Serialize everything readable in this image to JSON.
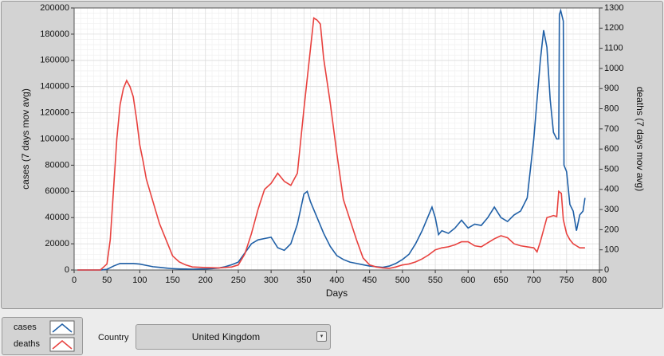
{
  "chart_data": {
    "type": "line",
    "xlabel": "Days",
    "ylabel": "cases  (7 days mov avg)",
    "y2label": "deaths  (7 days mov avg)",
    "xlim": [
      0,
      800
    ],
    "xticks": [
      0,
      50,
      100,
      150,
      200,
      250,
      300,
      350,
      400,
      450,
      500,
      550,
      600,
      650,
      700,
      750,
      800
    ],
    "ylim": [
      0,
      200000
    ],
    "yticks": [
      0,
      20000,
      40000,
      60000,
      80000,
      100000,
      120000,
      140000,
      160000,
      180000,
      200000
    ],
    "y2lim": [
      0,
      1300
    ],
    "y2ticks": [
      0,
      100,
      200,
      300,
      400,
      500,
      600,
      700,
      800,
      900,
      1000,
      1100,
      1200,
      1300
    ],
    "grid": true,
    "minor_grid": true,
    "series": [
      {
        "name": "cases",
        "color": "#1f5fa6",
        "axis": "y",
        "x": [
          5,
          20,
          40,
          50,
          60,
          70,
          80,
          90,
          100,
          110,
          120,
          130,
          140,
          150,
          160,
          170,
          180,
          190,
          200,
          210,
          220,
          230,
          240,
          250,
          260,
          270,
          280,
          290,
          300,
          310,
          320,
          330,
          340,
          350,
          355,
          360,
          370,
          380,
          390,
          400,
          410,
          420,
          430,
          440,
          450,
          460,
          470,
          480,
          490,
          500,
          510,
          520,
          530,
          540,
          545,
          550,
          555,
          560,
          570,
          580,
          590,
          600,
          610,
          620,
          630,
          640,
          650,
          660,
          670,
          680,
          690,
          700,
          710,
          715,
          720,
          725,
          730,
          735,
          738,
          739,
          741,
          745,
          746,
          750,
          755,
          760,
          765,
          770,
          775,
          778
        ],
        "values": [
          0,
          0,
          0,
          500,
          3000,
          5000,
          5000,
          5000,
          4500,
          3500,
          2500,
          2000,
          1500,
          1000,
          800,
          700,
          600,
          700,
          800,
          1000,
          1500,
          2500,
          4000,
          6000,
          13000,
          20000,
          23000,
          24000,
          25000,
          17000,
          15000,
          20000,
          35000,
          58000,
          60000,
          52000,
          40000,
          28000,
          18000,
          11000,
          8000,
          6000,
          5000,
          4000,
          3000,
          2500,
          2000,
          3000,
          5000,
          8000,
          12000,
          20000,
          30000,
          42000,
          48000,
          40000,
          27000,
          30000,
          28000,
          32000,
          38000,
          32000,
          35000,
          34000,
          40000,
          48000,
          40000,
          37000,
          42000,
          45000,
          55000,
          100000,
          160000,
          183000,
          170000,
          130000,
          105000,
          100000,
          100000,
          195000,
          198000,
          190000,
          80000,
          75000,
          50000,
          45000,
          30000,
          42000,
          45000,
          55000
        ]
      },
      {
        "name": "deaths",
        "color": "#e8413e",
        "axis": "y2",
        "x": [
          5,
          40,
          50,
          55,
          60,
          65,
          70,
          75,
          80,
          85,
          90,
          95,
          100,
          105,
          110,
          120,
          130,
          140,
          150,
          160,
          170,
          180,
          200,
          220,
          240,
          250,
          260,
          270,
          280,
          290,
          300,
          310,
          320,
          330,
          340,
          350,
          360,
          365,
          370,
          375,
          380,
          390,
          400,
          410,
          420,
          430,
          440,
          450,
          460,
          470,
          480,
          490,
          500,
          510,
          520,
          530,
          540,
          550,
          560,
          570,
          580,
          590,
          600,
          610,
          620,
          630,
          640,
          650,
          660,
          670,
          680,
          690,
          700,
          705,
          710,
          720,
          730,
          735,
          738,
          742,
          745,
          750,
          755,
          760,
          765,
          770,
          778
        ],
        "values": [
          0,
          0,
          30,
          150,
          400,
          650,
          820,
          900,
          940,
          910,
          860,
          750,
          620,
          540,
          450,
          340,
          230,
          150,
          70,
          40,
          25,
          15,
          12,
          10,
          15,
          25,
          80,
          180,
          300,
          400,
          430,
          480,
          440,
          420,
          480,
          800,
          1100,
          1250,
          1240,
          1220,
          1050,
          830,
          580,
          350,
          250,
          150,
          60,
          25,
          15,
          10,
          8,
          15,
          25,
          30,
          40,
          55,
          75,
          100,
          110,
          115,
          125,
          140,
          140,
          120,
          115,
          135,
          155,
          170,
          160,
          130,
          120,
          115,
          110,
          90,
          140,
          260,
          270,
          265,
          390,
          380,
          250,
          180,
          150,
          130,
          120,
          110,
          110
        ]
      }
    ]
  },
  "ui": {
    "country_label": "Country",
    "country_value": "United Kingdom"
  }
}
